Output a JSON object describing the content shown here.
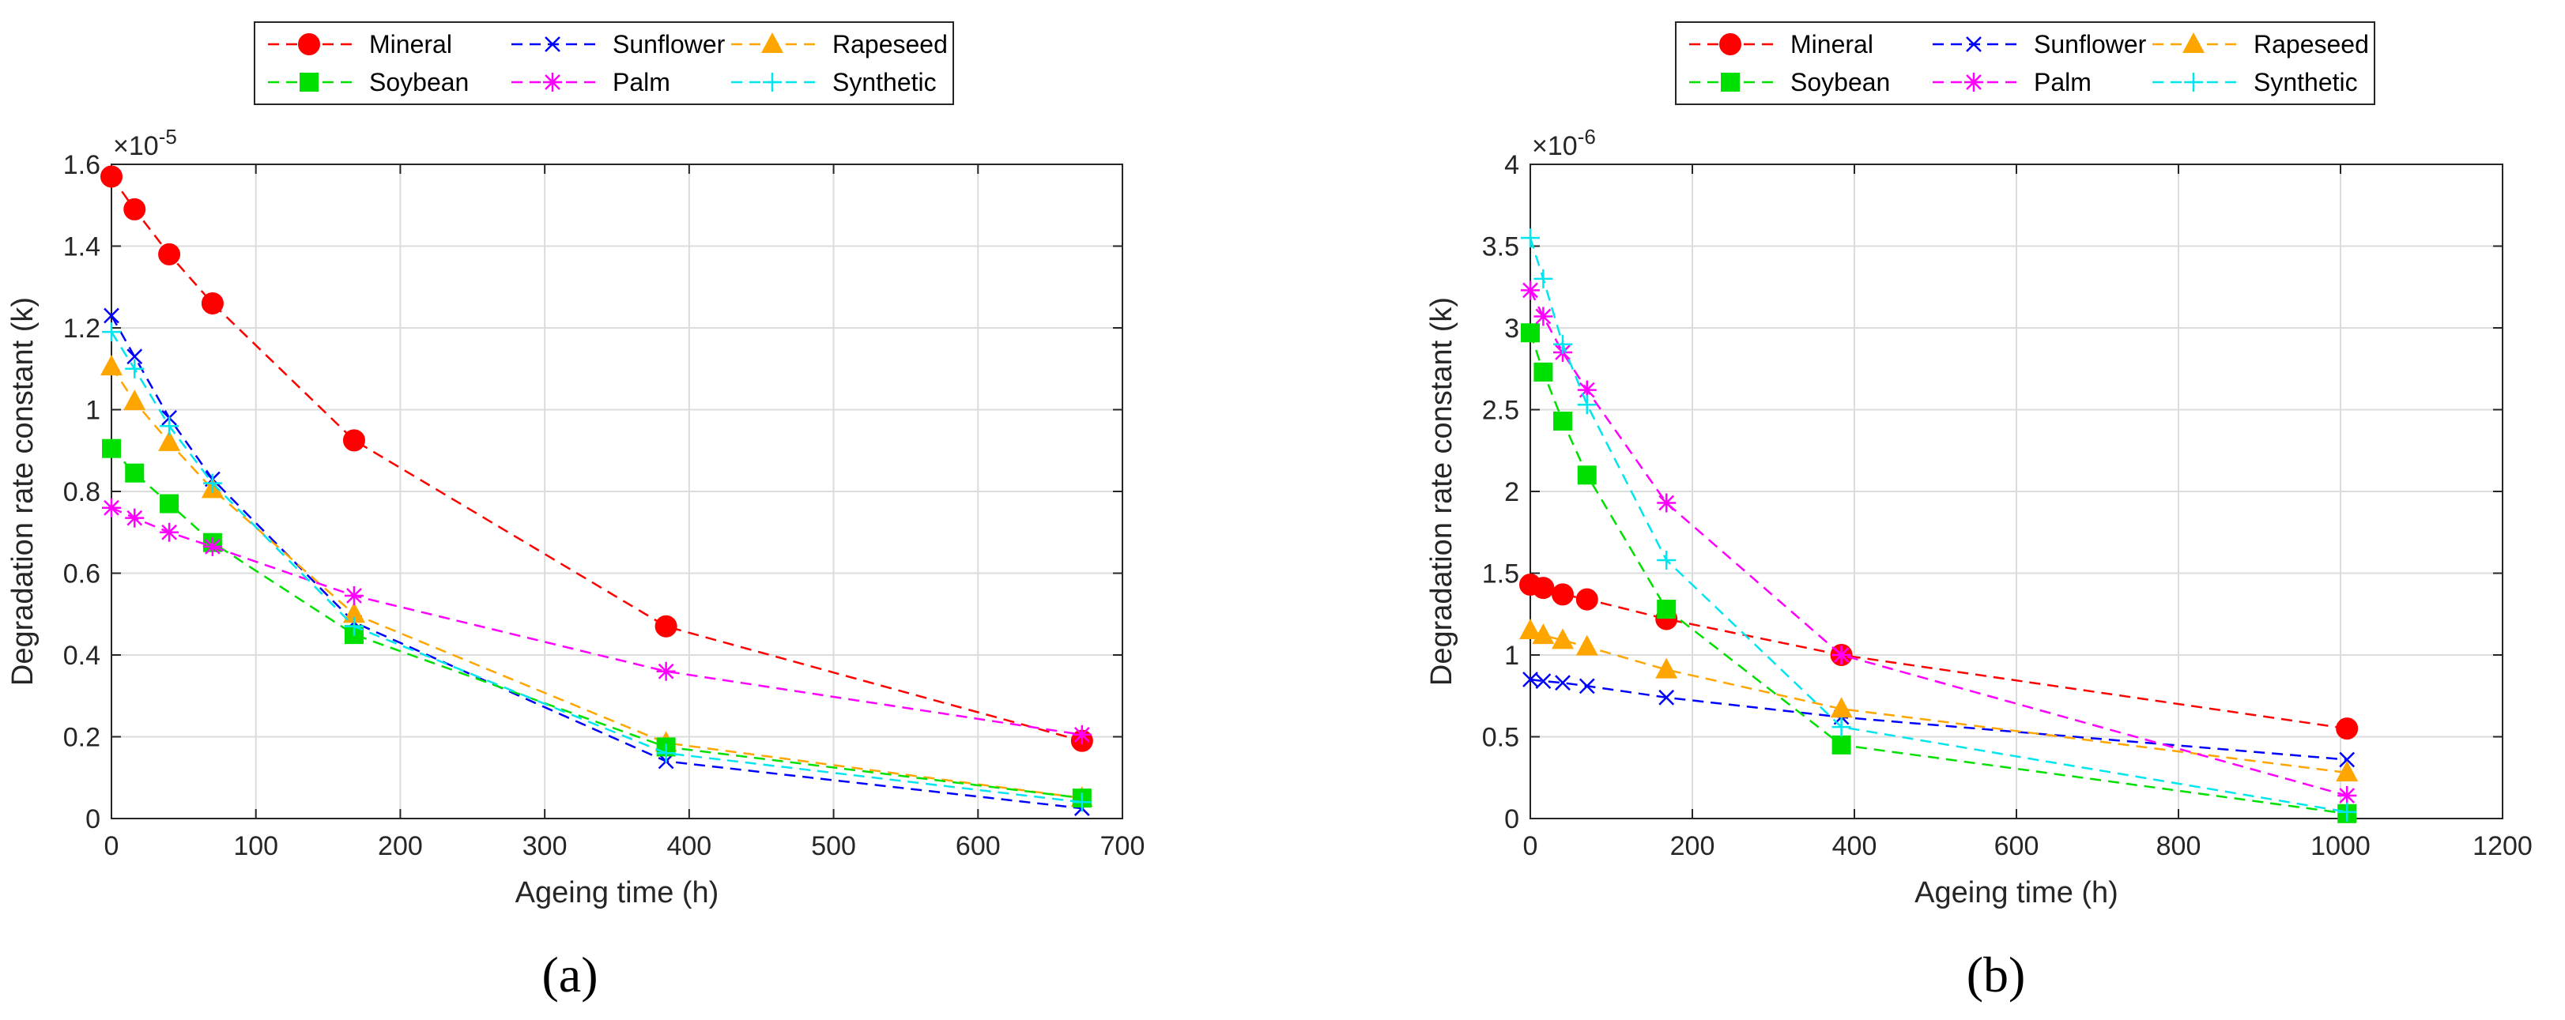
{
  "chart_data": [
    {
      "type": "line",
      "panel_label": "(a)",
      "xlabel": "Ageing time (h)",
      "ylabel": "Degradation rate constant (k)",
      "y_exponent": "×10",
      "y_exponent_power": "-5",
      "xlim": [
        0,
        700
      ],
      "ylim": [
        0,
        1.6
      ],
      "xticks": [
        0,
        100,
        200,
        300,
        400,
        500,
        600,
        700
      ],
      "xtick_labels": [
        "0",
        "100",
        "200",
        "300",
        "400",
        "500",
        "600",
        "700"
      ],
      "yticks": [
        0,
        0.2,
        0.4,
        0.6,
        0.8,
        1,
        1.2,
        1.4,
        1.6
      ],
      "ytick_labels": [
        "0",
        "0.2",
        "0.4",
        "0.6",
        "0.8",
        "1",
        "1.2",
        "1.4",
        "1.6"
      ],
      "grid": true,
      "legend_position": "top-center",
      "series": [
        {
          "name": "Mineral",
          "color": "#ff0000",
          "marker": "circle",
          "x": [
            0,
            16,
            40,
            70,
            168,
            384,
            672
          ],
          "y": [
            1.57,
            1.49,
            1.38,
            1.26,
            0.925,
            0.47,
            0.19
          ]
        },
        {
          "name": "Sunflower",
          "color": "#0000ff",
          "marker": "x",
          "x": [
            0,
            16,
            40,
            70,
            168,
            384,
            672
          ],
          "y": [
            1.23,
            1.13,
            0.98,
            0.83,
            0.48,
            0.14,
            0.025
          ]
        },
        {
          "name": "Rapeseed",
          "color": "#ffa500",
          "marker": "triangle",
          "x": [
            0,
            16,
            40,
            70,
            168,
            384,
            672
          ],
          "y": [
            1.105,
            1.02,
            0.92,
            0.805,
            0.5,
            0.185,
            0.05
          ]
        },
        {
          "name": "Soybean",
          "color": "#00e000",
          "marker": "square",
          "x": [
            0,
            16,
            40,
            70,
            168,
            384,
            672
          ],
          "y": [
            0.905,
            0.845,
            0.77,
            0.675,
            0.45,
            0.175,
            0.05
          ]
        },
        {
          "name": "Palm",
          "color": "#ff00ff",
          "marker": "star",
          "x": [
            0,
            16,
            40,
            70,
            168,
            384,
            672
          ],
          "y": [
            0.76,
            0.735,
            0.7,
            0.665,
            0.545,
            0.36,
            0.205
          ]
        },
        {
          "name": "Synthetic",
          "color": "#00e5ee",
          "marker": "plus",
          "x": [
            0,
            16,
            40,
            70,
            168,
            384,
            672
          ],
          "y": [
            1.19,
            1.1,
            0.96,
            0.82,
            0.47,
            0.16,
            0.04
          ]
        }
      ]
    },
    {
      "type": "line",
      "panel_label": "(b)",
      "xlabel": "Ageing time (h)",
      "ylabel": "Degradation rate constant (k)",
      "y_exponent": "×10",
      "y_exponent_power": "-6",
      "xlim": [
        0,
        1200
      ],
      "ylim": [
        0,
        4
      ],
      "xticks": [
        0,
        200,
        400,
        600,
        800,
        1000,
        1200
      ],
      "xtick_labels": [
        "0",
        "200",
        "400",
        "600",
        "800",
        "1000",
        "1200"
      ],
      "yticks": [
        0,
        0.5,
        1,
        1.5,
        2,
        2.5,
        3,
        3.5,
        4
      ],
      "ytick_labels": [
        "0",
        "0.5",
        "1",
        "1.5",
        "2",
        "2.5",
        "3",
        "3.5",
        "4"
      ],
      "grid": true,
      "legend_position": "top-center",
      "series": [
        {
          "name": "Mineral",
          "color": "#ff0000",
          "marker": "circle",
          "x": [
            0,
            16,
            40,
            70,
            168,
            384,
            1008
          ],
          "y": [
            1.43,
            1.41,
            1.37,
            1.34,
            1.22,
            1.0,
            0.55
          ]
        },
        {
          "name": "Sunflower",
          "color": "#0000ff",
          "marker": "x",
          "x": [
            0,
            16,
            40,
            70,
            168,
            384,
            1008
          ],
          "y": [
            0.85,
            0.84,
            0.83,
            0.81,
            0.74,
            0.62,
            0.36
          ]
        },
        {
          "name": "Rapeseed",
          "color": "#ffa500",
          "marker": "triangle",
          "x": [
            0,
            16,
            40,
            70,
            168,
            384,
            1008
          ],
          "y": [
            1.15,
            1.12,
            1.09,
            1.05,
            0.91,
            0.67,
            0.28
          ]
        },
        {
          "name": "Soybean",
          "color": "#00e000",
          "marker": "square",
          "x": [
            0,
            16,
            40,
            70,
            168,
            384,
            1008
          ],
          "y": [
            2.97,
            2.73,
            2.43,
            2.1,
            1.28,
            0.45,
            0.03
          ]
        },
        {
          "name": "Palm",
          "color": "#ff00ff",
          "marker": "star",
          "x": [
            0,
            16,
            40,
            70,
            168,
            384,
            1008
          ],
          "y": [
            3.23,
            3.07,
            2.85,
            2.62,
            1.93,
            1.0,
            0.14
          ]
        },
        {
          "name": "Synthetic",
          "color": "#00e5ee",
          "marker": "plus",
          "x": [
            0,
            16,
            40,
            70,
            168,
            384,
            1008
          ],
          "y": [
            3.55,
            3.3,
            2.9,
            2.53,
            1.58,
            0.56,
            0.04
          ]
        }
      ]
    }
  ]
}
